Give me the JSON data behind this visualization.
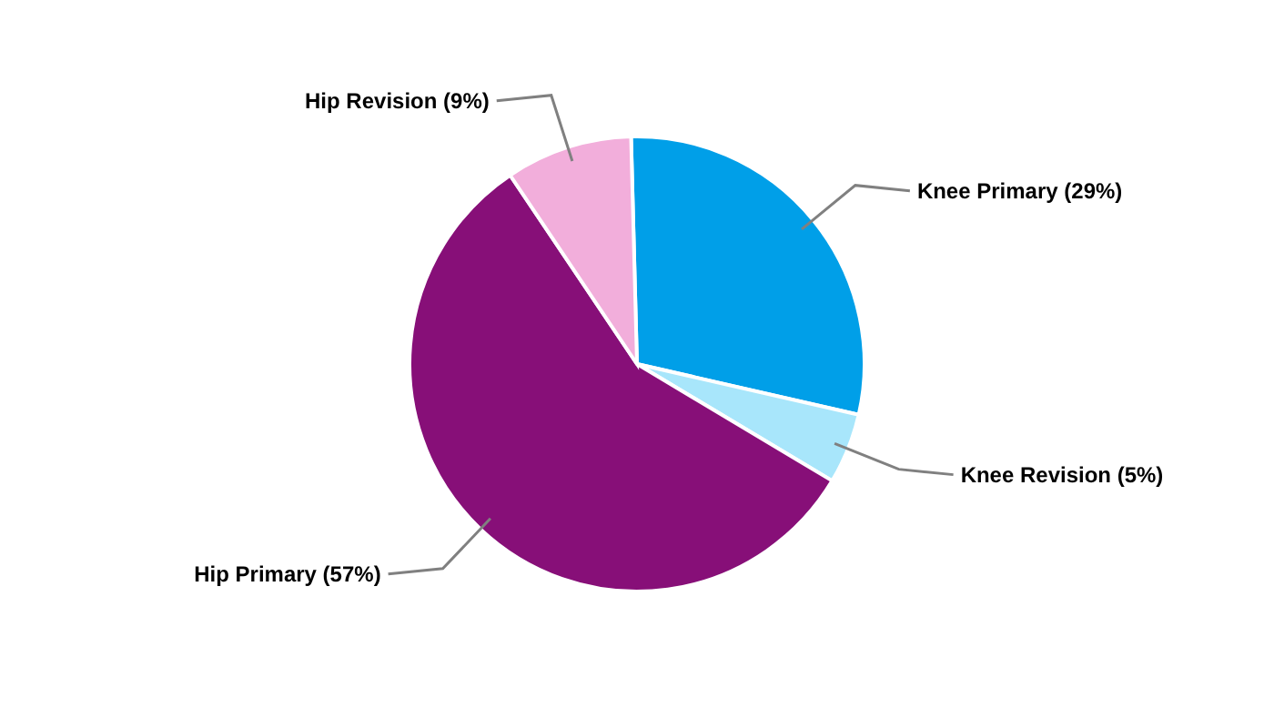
{
  "chart_data": {
    "type": "pie",
    "categories": [
      "Knee Primary",
      "Knee Revision",
      "Hip Primary",
      "Hip Revision"
    ],
    "values": [
      29,
      5,
      57,
      9
    ],
    "colors": [
      "#009fe8",
      "#a8e6fb",
      "#870f78",
      "#f2aedb"
    ],
    "value_labels": [
      "(29%)",
      "(5%)",
      "(57%)",
      "(9%)"
    ]
  }
}
